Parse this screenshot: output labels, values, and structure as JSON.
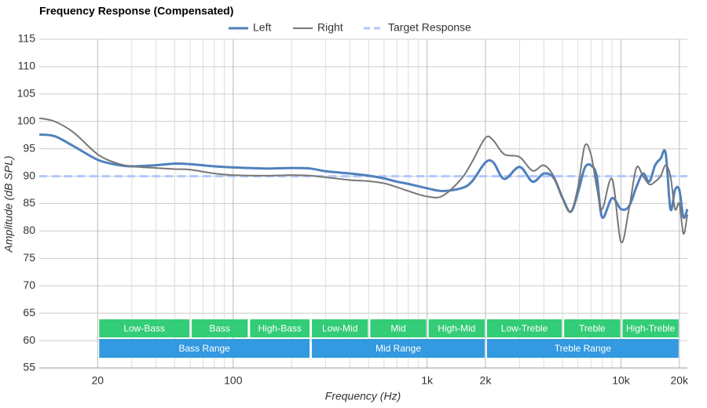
{
  "chart_data": {
    "type": "line",
    "title": "Frequency Response (Compensated)",
    "x_label": "Frequency (Hz)",
    "y_label": "Amplitude (dB SPL)",
    "log_x": true,
    "grid": true,
    "legend": "top",
    "xlim": [
      10,
      22000
    ],
    "ylim": [
      55,
      115
    ],
    "yticks": [
      55,
      60,
      65,
      70,
      75,
      80,
      85,
      90,
      95,
      100,
      105,
      110,
      115
    ],
    "xticks": [
      20,
      100,
      {
        "value": 1000,
        "label": "1k"
      },
      {
        "value": 2000,
        "label": "2k"
      },
      {
        "value": 10000,
        "label": "10k"
      },
      {
        "value": 20000,
        "label": "20k"
      }
    ],
    "x_minor_ticks": [
      30,
      40,
      50,
      60,
      70,
      80,
      90,
      200,
      300,
      400,
      500,
      600,
      700,
      800,
      900,
      3000,
      4000,
      5000,
      6000,
      7000,
      8000,
      9000
    ],
    "x": [
      10,
      12,
      15,
      20,
      25,
      30,
      40,
      50,
      60,
      80,
      100,
      150,
      200,
      250,
      300,
      400,
      500,
      600,
      700,
      800,
      1000,
      1200,
      1500,
      1700,
      2000,
      2200,
      2500,
      3000,
      3500,
      4000,
      4500,
      5000,
      5500,
      6000,
      6500,
      7000,
      7500,
      8000,
      9000,
      10000,
      11000,
      12000,
      13000,
      14000,
      15000,
      16000,
      17000,
      18000,
      19000,
      20000,
      21000,
      22000
    ],
    "series": [
      {
        "name": "Left",
        "color": "#4f81bd",
        "width": 3,
        "values": [
          97.6,
          97.3,
          95.5,
          93,
          92.1,
          91.8,
          92.0,
          92.3,
          92.2,
          91.8,
          91.6,
          91.4,
          91.5,
          91.4,
          90.9,
          90.5,
          90.1,
          89.6,
          89.0,
          88.6,
          87.8,
          87.3,
          87.8,
          89,
          92.5,
          92.5,
          89.5,
          91.7,
          89,
          90.5,
          89.7,
          86,
          83.5,
          87,
          91.5,
          92,
          90,
          82.5,
          86,
          84,
          84.5,
          88,
          90.5,
          89,
          92,
          93.2,
          94.2,
          84,
          87.5,
          87.5,
          82.5,
          84
        ]
      },
      {
        "name": "Right",
        "color": "#777777",
        "width": 2,
        "values": [
          100.6,
          100,
          98,
          94,
          92.4,
          91.8,
          91.5,
          91.3,
          91.2,
          90.5,
          90.2,
          90.1,
          90.2,
          90.1,
          89.8,
          89.3,
          89.1,
          88.7,
          88.0,
          87.3,
          86.3,
          86.4,
          89.5,
          92.5,
          97,
          96.5,
          94,
          93.5,
          91,
          92,
          90,
          86,
          83.5,
          88,
          95.5,
          94,
          88,
          84,
          89.5,
          78,
          84,
          91.5,
          90,
          88.5,
          89,
          90,
          92,
          90,
          84,
          85,
          79.5,
          83
        ]
      },
      {
        "name": "Target Response",
        "color": "#b3c6ff",
        "width": 3,
        "dashed": true,
        "values": [
          90,
          90,
          90,
          90,
          90,
          90,
          90,
          90,
          90,
          90,
          90,
          90,
          90,
          90,
          90,
          90,
          90,
          90,
          90,
          90,
          90,
          90,
          90,
          90,
          90,
          90,
          90,
          90,
          90,
          90,
          90,
          90,
          90,
          90,
          90,
          90,
          90,
          90,
          90,
          90,
          90,
          90,
          90,
          90,
          90,
          90,
          90,
          90,
          90,
          90,
          90,
          90
        ]
      }
    ],
    "bands": [
      {
        "label": "Low-Bass",
        "start": 20,
        "end": 60,
        "color": "#33cc77"
      },
      {
        "label": "Bass",
        "start": 60,
        "end": 120,
        "color": "#33cc77"
      },
      {
        "label": "High-Bass",
        "start": 120,
        "end": 250,
        "color": "#33cc77"
      },
      {
        "label": "Low-Mid",
        "start": 250,
        "end": 500,
        "color": "#33cc77"
      },
      {
        "label": "Mid",
        "start": 500,
        "end": 1000,
        "color": "#33cc77"
      },
      {
        "label": "High-Mid",
        "start": 1000,
        "end": 2000,
        "color": "#33cc77"
      },
      {
        "label": "Low-Treble",
        "start": 2000,
        "end": 5000,
        "color": "#33cc77"
      },
      {
        "label": "Treble",
        "start": 5000,
        "end": 10000,
        "color": "#33cc77"
      },
      {
        "label": "High-Treble",
        "start": 10000,
        "end": 20000,
        "color": "#33cc77"
      }
    ],
    "ranges": [
      {
        "label": "Bass Range",
        "start": 20,
        "end": 250,
        "color": "#3399e0"
      },
      {
        "label": "Mid Range",
        "start": 250,
        "end": 2000,
        "color": "#3399e0"
      },
      {
        "label": "Treble Range",
        "start": 2000,
        "end": 20000,
        "color": "#3399e0"
      }
    ]
  }
}
